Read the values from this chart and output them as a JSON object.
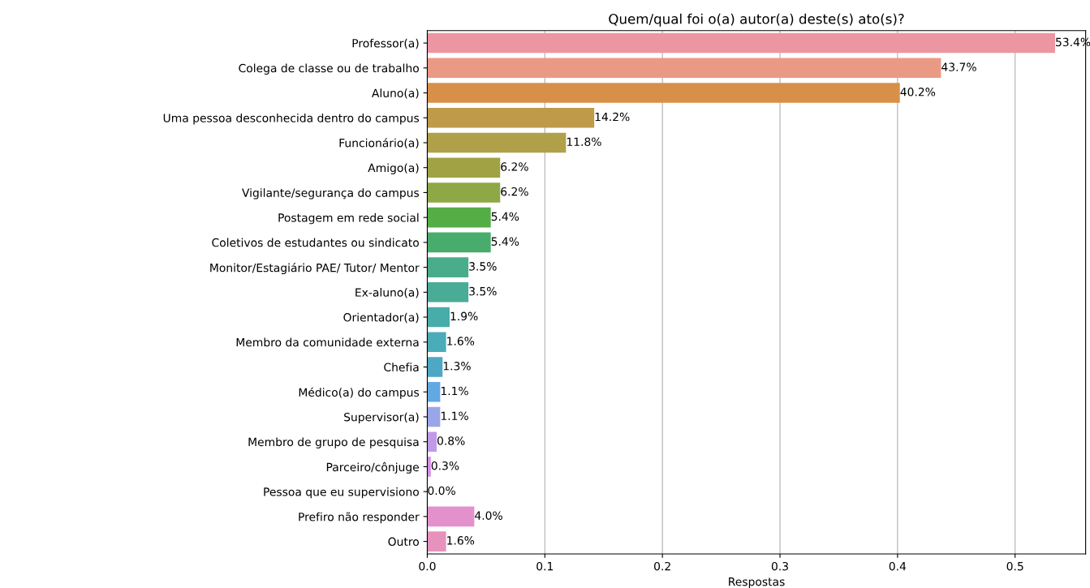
{
  "chart_data": {
    "type": "bar",
    "orientation": "horizontal",
    "title": "Quem/qual foi o(a) autor(a) deste(s) ato(s)?",
    "xlabel": "Respostas",
    "categories": [
      "Professor(a)",
      "Colega de classe ou de trabalho",
      "Aluno(a)",
      "Uma pessoa desconhecida dentro do campus",
      "Funcionário(a)",
      "Amigo(a)",
      "Vigilante/segurança do campus",
      "Postagem em rede social",
      "Coletivos de estudantes ou sindicato",
      "Monitor/Estagiário PAE/ Tutor/ Mentor",
      "Ex-aluno(a)",
      "Orientador(a)",
      "Membro da comunidade externa",
      "Chefia",
      "Médico(a) do campus",
      "Supervisor(a)",
      "Membro de grupo de pesquisa",
      "Parceiro/cônjuge",
      "Pessoa que eu supervisiono",
      "Prefiro não responder",
      "Outro"
    ],
    "values": [
      0.534,
      0.437,
      0.402,
      0.142,
      0.118,
      0.062,
      0.062,
      0.054,
      0.054,
      0.035,
      0.035,
      0.019,
      0.016,
      0.013,
      0.011,
      0.011,
      0.008,
      0.003,
      0.0,
      0.04,
      0.016
    ],
    "value_labels": [
      "53.4%",
      "43.7%",
      "40.2%",
      "14.2%",
      "11.8%",
      "6.2%",
      "6.2%",
      "5.4%",
      "5.4%",
      "3.5%",
      "3.5%",
      "1.9%",
      "1.6%",
      "1.3%",
      "1.1%",
      "1.1%",
      "0.8%",
      "0.3%",
      "0.0%",
      "4.0%",
      "1.6%"
    ],
    "colors": [
      "#ec96a1",
      "#ea9a84",
      "#d89049",
      "#be9a49",
      "#b0a04a",
      "#a0a244",
      "#8ea846",
      "#55ad46",
      "#48ad6c",
      "#49ad8c",
      "#4aab97",
      "#48aca8",
      "#4aacb9",
      "#4ea7c4",
      "#62a9e2",
      "#9aa6e8",
      "#c09ae8",
      "#d88ee5",
      "#e08ede",
      "#e391cc",
      "#e792bd"
    ],
    "xlim": [
      0,
      0.56
    ],
    "xticks": [
      {
        "value": 0,
        "label": "0.0"
      },
      0.1,
      0.2,
      0.3,
      0.4,
      0.5
    ],
    "grid": "x"
  }
}
